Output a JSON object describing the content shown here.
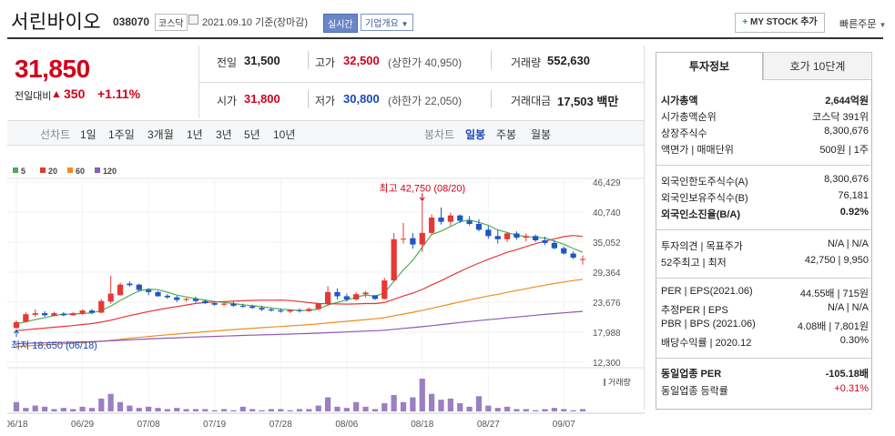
{
  "header": {
    "name": "서린바이오",
    "code": "038070",
    "market": "코스닥",
    "date": "2021.09.10 기준(장마감)",
    "realtime": "실시간",
    "profile": "기업개요",
    "mystock": "MY STOCK 추가",
    "quick_order": "빠른주문"
  },
  "price": {
    "current": "31,850",
    "prev_label": "전일대비",
    "change": "350",
    "change_pct": "+1.11%"
  },
  "quote": {
    "prev_label": "전일",
    "prev": "31,500",
    "high_label": "고가",
    "high": "32,500",
    "upper_limit": "(상한가 40,950)",
    "volume_label": "거래량",
    "volume": "552,630",
    "open_label": "시가",
    "open": "31,800",
    "low_label": "저가",
    "low": "30,800",
    "lower_limit": "(하한가 22,050)",
    "amount_label": "거래대금",
    "amount": "17,503 백만"
  },
  "tabs": {
    "line_label": "선차트",
    "periods": [
      "1일",
      "1주일",
      "3개월",
      "1년",
      "3년",
      "5년",
      "10년"
    ],
    "candle_label": "봉차트",
    "candle_periods": [
      "일봉",
      "주봉",
      "월봉"
    ]
  },
  "chart_data": {
    "type": "candlestick",
    "legend": [
      "5",
      "20",
      "60",
      "120"
    ],
    "ma_colors": [
      "#4caf50",
      "#e53935",
      "#ef8c1c",
      "#8e5ab6"
    ],
    "up_color": "#e53935",
    "down_color": "#1e56c8",
    "volume_color": "#9b7fc1",
    "y_ticks": [
      "46,429",
      "40,740",
      "35,052",
      "29,364",
      "23,676",
      "17,988",
      "12,300"
    ],
    "y_tick_values": [
      46429,
      40740,
      35052,
      29364,
      23676,
      17988,
      12300
    ],
    "x_ticks": [
      "06/18",
      "06/29",
      "07/08",
      "07/19",
      "07/28",
      "08/06",
      "08/18",
      "08/27",
      "09/07"
    ],
    "x_tick_index": [
      0,
      7,
      14,
      21,
      28,
      35,
      43,
      50,
      58
    ],
    "high_annotation": "최고 42,750 (08/20)",
    "low_annotation": "최저 18,650 (06/18)",
    "volume_label": "거래량",
    "candles": [
      [
        18800,
        20200,
        18650,
        19900
      ],
      [
        20000,
        21800,
        19800,
        21400
      ],
      [
        21300,
        22300,
        20900,
        21600
      ],
      [
        21600,
        22000,
        20900,
        21200
      ],
      [
        21100,
        21900,
        21000,
        21600
      ],
      [
        21500,
        21800,
        21000,
        21200
      ],
      [
        21200,
        21800,
        21100,
        21600
      ],
      [
        21500,
        22300,
        21300,
        22100
      ],
      [
        22100,
        22400,
        21400,
        21700
      ],
      [
        21700,
        24300,
        21600,
        23900
      ],
      [
        23800,
        28700,
        23400,
        25300
      ],
      [
        25000,
        27400,
        24900,
        27000
      ],
      [
        27200,
        27600,
        26600,
        26900
      ],
      [
        27000,
        27200,
        25700,
        26000
      ],
      [
        26000,
        26300,
        25000,
        25600
      ],
      [
        25600,
        25800,
        24700,
        24800
      ],
      [
        24900,
        25200,
        24300,
        24600
      ],
      [
        24600,
        24900,
        23700,
        24100
      ],
      [
        24100,
        24500,
        23800,
        24300
      ],
      [
        24300,
        24700,
        23600,
        23900
      ],
      [
        23900,
        24200,
        23300,
        23500
      ],
      [
        23500,
        23900,
        23000,
        23200
      ],
      [
        23200,
        23700,
        22900,
        23400
      ],
      [
        23400,
        23800,
        22800,
        23000
      ],
      [
        23000,
        23400,
        22600,
        22900
      ],
      [
        22900,
        23200,
        22400,
        22600
      ],
      [
        22600,
        23000,
        22000,
        22300
      ],
      [
        22300,
        22600,
        21900,
        22100
      ],
      [
        22100,
        22500,
        21700,
        21900
      ],
      [
        21900,
        22300,
        21600,
        22200
      ],
      [
        22200,
        22500,
        21700,
        22000
      ],
      [
        22000,
        22700,
        21800,
        22400
      ],
      [
        22400,
        23600,
        22200,
        23400
      ],
      [
        23300,
        26700,
        23000,
        25600
      ],
      [
        25600,
        26300,
        24200,
        24800
      ],
      [
        24800,
        25300,
        23800,
        24200
      ],
      [
        24200,
        25600,
        24000,
        25200
      ],
      [
        25200,
        25800,
        24600,
        25500
      ],
      [
        25000,
        24800,
        24100,
        24300
      ],
      [
        24300,
        28300,
        24200,
        27800
      ],
      [
        27800,
        36800,
        27600,
        35600
      ],
      [
        35600,
        38700,
        34800,
        35700
      ],
      [
        35800,
        36800,
        33800,
        34600
      ],
      [
        34600,
        42750,
        33200,
        36800
      ],
      [
        36800,
        40300,
        36400,
        39700
      ],
      [
        39700,
        41600,
        38400,
        38900
      ],
      [
        38900,
        40600,
        38200,
        40100
      ],
      [
        40100,
        40300,
        38700,
        39100
      ],
      [
        39100,
        40000,
        38200,
        38500
      ],
      [
        38500,
        39400,
        37100,
        37400
      ],
      [
        37400,
        38100,
        35700,
        36200
      ],
      [
        36200,
        37400,
        34800,
        35600
      ],
      [
        35600,
        37000,
        35100,
        36700
      ],
      [
        36700,
        37100,
        35500,
        35900
      ],
      [
        35900,
        36700,
        35200,
        36200
      ],
      [
        36200,
        36500,
        35100,
        35400
      ],
      [
        35400,
        36100,
        34500,
        34900
      ],
      [
        34900,
        35400,
        33700,
        33900
      ],
      [
        33900,
        34200,
        32700,
        32900
      ],
      [
        32900,
        33300,
        31800,
        32100
      ],
      [
        31800,
        32500,
        30800,
        31850
      ]
    ],
    "volumes": [
      8,
      3,
      5,
      4,
      2,
      3,
      2,
      4,
      3,
      11,
      15,
      8,
      5,
      3,
      4,
      3,
      2,
      3,
      2,
      2,
      2,
      1,
      2,
      1,
      4,
      2,
      1,
      2,
      2,
      1,
      2,
      2,
      5,
      12,
      4,
      3,
      8,
      4,
      2,
      7,
      14,
      8,
      12,
      28,
      15,
      10,
      11,
      7,
      4,
      13,
      5,
      3,
      4,
      2,
      2,
      1,
      2,
      3,
      2,
      1,
      2
    ]
  },
  "right_panel": {
    "tab1": "투자정보",
    "tab2": "호가 10단계",
    "rows": [
      {
        "l": "시가총액",
        "r": "2,644억원",
        "bold": true
      },
      {
        "l": "시가총액순위",
        "r": "코스닥 391위"
      },
      {
        "l": "상장주식수",
        "r": "8,300,676"
      },
      {
        "l": "액면가 | 매매단위",
        "r": "500원 | 1주"
      },
      {
        "l": "외국인한도주식수(A)",
        "r": "8,300,676"
      },
      {
        "l": "외국인보유주식수(B)",
        "r": "76,181"
      },
      {
        "l": "외국인소진율(B/A)",
        "r": "0.92%",
        "bold": true
      },
      {
        "l": "투자의견 | 목표주가",
        "r": "N/A | N/A"
      },
      {
        "l": "52주최고 | 최저",
        "r": "42,750 | 9,950"
      },
      {
        "l": "PER | EPS(2021.06)",
        "r": "44.55배 | 715원"
      },
      {
        "l": "추정PER | EPS",
        "r": "N/A | N/A"
      },
      {
        "l": "PBR | BPS (2021.06)",
        "r": "4.08배 | 7,801원"
      },
      {
        "l": "배당수익률 | 2020.12",
        "r": "0.30%"
      },
      {
        "l": "동일업종 PER",
        "r": "-105.18배",
        "bold": true
      },
      {
        "l": "동일업종 등락률",
        "r": "+0.31%",
        "red": true
      }
    ]
  }
}
